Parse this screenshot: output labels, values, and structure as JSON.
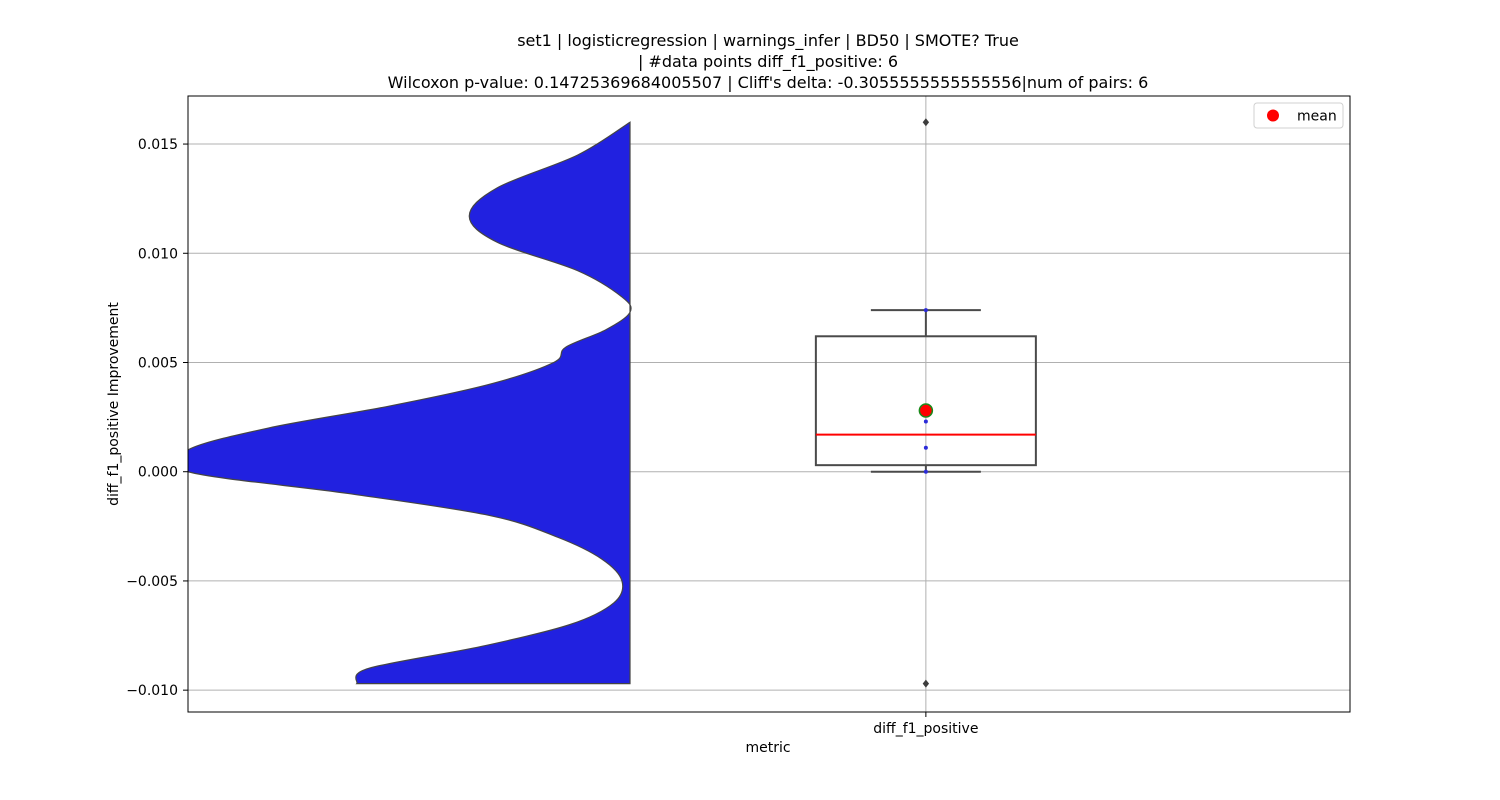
{
  "chart_data": {
    "type": "violin+box",
    "title_lines": [
      "set1 | logisticregression | warnings_infer | BD50 | SMOTE? True",
      "| #data points diff_f1_positive: 6",
      "Wilcoxon p-value: 0.14725369684005507 | Cliff's delta: -0.3055555555555556|num of pairs: 6"
    ],
    "xlabel": "metric",
    "ylabel": "diff_f1_positive Improvement",
    "categories": [
      "diff_f1_positive"
    ],
    "ylim": [
      -0.011,
      0.0172
    ],
    "yticks": [
      -0.01,
      -0.005,
      0.0,
      0.005,
      0.01,
      0.015
    ],
    "ytick_labels": [
      "−0.010",
      "−0.005",
      "0.000",
      "0.005",
      "0.010",
      "0.015"
    ],
    "grid": true,
    "legend": {
      "placement": "top-right",
      "entries": [
        {
          "label": "mean",
          "color": "#ff0000"
        }
      ]
    },
    "points": [
      -0.0097,
      0.0,
      0.0011,
      0.0023,
      0.0074,
      0.016
    ],
    "box": {
      "q1": 0.0003,
      "median": 0.0017,
      "q3": 0.0062,
      "whisker_low": 0.0,
      "whisker_high": 0.0074,
      "mean": 0.0028
    },
    "outliers": [
      -0.0097,
      0.016
    ],
    "violin_density": [
      {
        "y": 0.016,
        "d": 0.0
      },
      {
        "y": 0.0145,
        "d": 0.13
      },
      {
        "y": 0.013,
        "d": 0.33
      },
      {
        "y": 0.0117,
        "d": 0.4
      },
      {
        "y": 0.0105,
        "d": 0.33
      },
      {
        "y": 0.0092,
        "d": 0.13
      },
      {
        "y": 0.008,
        "d": 0.02
      },
      {
        "y": 0.0073,
        "d": 0.0
      },
      {
        "y": 0.0065,
        "d": 0.06
      },
      {
        "y": 0.0057,
        "d": 0.16
      },
      {
        "y": 0.005,
        "d": 0.19
      },
      {
        "y": 0.004,
        "d": 0.35
      },
      {
        "y": 0.003,
        "d": 0.6
      },
      {
        "y": 0.002,
        "d": 0.9
      },
      {
        "y": 0.001,
        "d": 1.1
      },
      {
        "y": 0.0,
        "d": 1.1
      },
      {
        "y": -0.001,
        "d": 0.7
      },
      {
        "y": -0.002,
        "d": 0.35
      },
      {
        "y": -0.003,
        "d": 0.18
      },
      {
        "y": -0.004,
        "d": 0.07
      },
      {
        "y": -0.005,
        "d": 0.02
      },
      {
        "y": -0.006,
        "d": 0.04
      },
      {
        "y": -0.007,
        "d": 0.15
      },
      {
        "y": -0.008,
        "d": 0.37
      },
      {
        "y": -0.009,
        "d": 0.65
      },
      {
        "y": -0.0097,
        "d": 0.68
      }
    ],
    "colors": {
      "violin_fill": "#2121e0",
      "violin_edge": "#444444",
      "box_edge": "#4a4a4a",
      "median": "#ff0000",
      "mean_fill": "#ff0000",
      "mean_edge": "#1a8a1a",
      "points": "#2b2bd8",
      "outlier": "#3d3d3d",
      "grid": "#b0b0b0"
    }
  }
}
